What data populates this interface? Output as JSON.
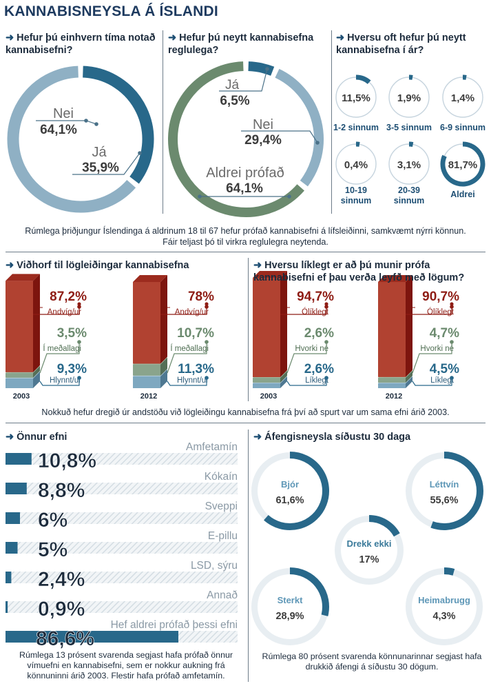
{
  "title": "KANNABISNEYSLA Á ÍSLANDI",
  "colors": {
    "blue": "#28688a",
    "lightblue": "#8fb0c4",
    "green": "#6b8a6e",
    "red": "#8e1c14",
    "dark": "#3c3c3c"
  },
  "section1": {
    "q1": {
      "heading": "Hefur þú einhvern tíma notað kannabisefni?",
      "labels": [
        {
          "name": "Nei",
          "value": "64,1%"
        },
        {
          "name": "Já",
          "value": "35,9%"
        }
      ]
    },
    "q2": {
      "heading": "Hefur þú neytt kannabisefna reglulega?",
      "labels": [
        {
          "name": "Já",
          "value": "6,5%"
        },
        {
          "name": "Nei",
          "value": "29,4%"
        },
        {
          "name": "Aldrei prófað",
          "value": "64,1%"
        }
      ]
    },
    "q3": {
      "heading": "Hversu oft hefur þú neytt kannabisefna í ár?",
      "items": [
        {
          "value": "11,5%",
          "label": "1-2 sinnum"
        },
        {
          "value": "1,9%",
          "label": "3-5 sinnum"
        },
        {
          "value": "1,4%",
          "label": "6-9 sinnum"
        },
        {
          "value": "0,4%",
          "label1": "10-19",
          "label2": "sinnum"
        },
        {
          "value": "3,1%",
          "label1": "20-39",
          "label2": "sinnum"
        },
        {
          "value": "81,7%",
          "label": "Aldrei"
        }
      ]
    },
    "caption1": "Rúmlega þriðjungur Íslendinga á aldrinum 18 til 67 hefur prófað kannabisefni á lífsleiðinni, samkvæmt nýrri könnun.",
    "caption2": "Fáir teljast þó til virkra reglulegra neytenda."
  },
  "section2": {
    "left_heading": "Viðhorf til lögleiðingar kannabisefna",
    "right_heading": "Hversu líklegt er að þú munir prófa kannabisefni ef þau verða leyfð með lögum?",
    "left": [
      {
        "year": "2003",
        "items": [
          {
            "label": "Andvíg/ur",
            "value": "87,2%"
          },
          {
            "label": "Í meðallagi",
            "value": "3,5%"
          },
          {
            "label": "Hlynnt/ur",
            "value": "9,3%"
          }
        ]
      },
      {
        "year": "2012",
        "items": [
          {
            "label": "Andvíg/ur",
            "value": "78%"
          },
          {
            "label": "Í meðallagi",
            "value": "10,7%"
          },
          {
            "label": "Hlynnt/ur",
            "value": "11,3%"
          }
        ]
      }
    ],
    "right": [
      {
        "year": "2003",
        "items": [
          {
            "label": "Ólíklegt",
            "value": "94,7%"
          },
          {
            "label": "Hvorki né",
            "value": "2,6%"
          },
          {
            "label": "Líklegt",
            "value": "2,6%"
          }
        ]
      },
      {
        "year": "2012",
        "items": [
          {
            "label": "Ólíklegt",
            "value": "90,7%"
          },
          {
            "label": "Hvorki né",
            "value": "4,7%"
          },
          {
            "label": "Líklegt",
            "value": "4,5%"
          }
        ]
      }
    ],
    "caption": "Nokkuð hefur dregið úr andstöðu við lögleiðingu kannabisefna frá því að spurt var um sama efni árið 2003."
  },
  "section3": {
    "heading": "Önnur efni",
    "caption": "Rúmlega 13 prósent svarenda segjast hafa prófað önnur vímuefni en kannabisefni, sem er nokkur aukning frá könnuninni árið 2003. Flestir hafa prófað amfetamín."
  },
  "section4": {
    "heading": "Áfengisneysla síðustu 30 daga",
    "caption": "Rúmlega 80 prósent svarenda könnunarinnar segjast hafa drukkið áfengi á síðustu 30 dögum."
  },
  "chart_data": [
    {
      "type": "pie",
      "title": "Hefur þú einhvern tíma notað kannabisefni?",
      "categories": [
        "Nei",
        "Já"
      ],
      "values": [
        64.1,
        35.9
      ]
    },
    {
      "type": "pie",
      "title": "Hefur þú neytt kannabisefna reglulega?",
      "categories": [
        "Já",
        "Nei",
        "Aldrei prófað"
      ],
      "values": [
        6.5,
        29.4,
        64.1
      ]
    },
    {
      "type": "pie",
      "title": "Hversu oft hefur þú neytt kannabisefna í ár?",
      "categories": [
        "1-2 sinnum",
        "3-5 sinnum",
        "6-9 sinnum",
        "10-19 sinnum",
        "20-39 sinnum",
        "Aldrei"
      ],
      "values": [
        11.5,
        1.9,
        1.4,
        0.4,
        3.1,
        81.7
      ]
    },
    {
      "type": "bar",
      "title": "Viðhorf til lögleiðingar kannabisefna",
      "categories": [
        "2003",
        "2012"
      ],
      "series": [
        {
          "name": "Andvíg/ur",
          "values": [
            87.2,
            78
          ]
        },
        {
          "name": "Í meðallagi",
          "values": [
            3.5,
            10.7
          ]
        },
        {
          "name": "Hlynnt/ur",
          "values": [
            9.3,
            11.3
          ]
        }
      ]
    },
    {
      "type": "bar",
      "title": "Hversu líklegt er að þú munir prófa kannabisefni ef þau verða leyfð með lögum?",
      "categories": [
        "2003",
        "2012"
      ],
      "series": [
        {
          "name": "Ólíklegt",
          "values": [
            94.7,
            90.7
          ]
        },
        {
          "name": "Hvorki né",
          "values": [
            2.6,
            4.7
          ]
        },
        {
          "name": "Líklegt",
          "values": [
            2.6,
            4.5
          ]
        }
      ]
    },
    {
      "type": "bar",
      "title": "Önnur efni",
      "categories": [
        "Amfetamín",
        "Kókaín",
        "Sveppi",
        "E-pillu",
        "LSD, sýru",
        "Annað",
        "Hef aldrei prófað þessi efni"
      ],
      "values": [
        10.8,
        8.8,
        6,
        5,
        2.4,
        0.9,
        86.6
      ],
      "labels": [
        "10,8%",
        "8,8%",
        "6%",
        "5%",
        "2,4%",
        "0,9%",
        "86,6%"
      ]
    },
    {
      "type": "pie",
      "title": "Áfengisneysla síðustu 30 daga",
      "categories": [
        "Bjór",
        "Léttvín",
        "Drekk ekki",
        "Sterkt",
        "Heimabrugg"
      ],
      "values": [
        61.6,
        55.6,
        17,
        28.9,
        4.3
      ],
      "labels": [
        "61,6%",
        "55,6%",
        "17%",
        "28,9%",
        "4,3%"
      ]
    }
  ]
}
